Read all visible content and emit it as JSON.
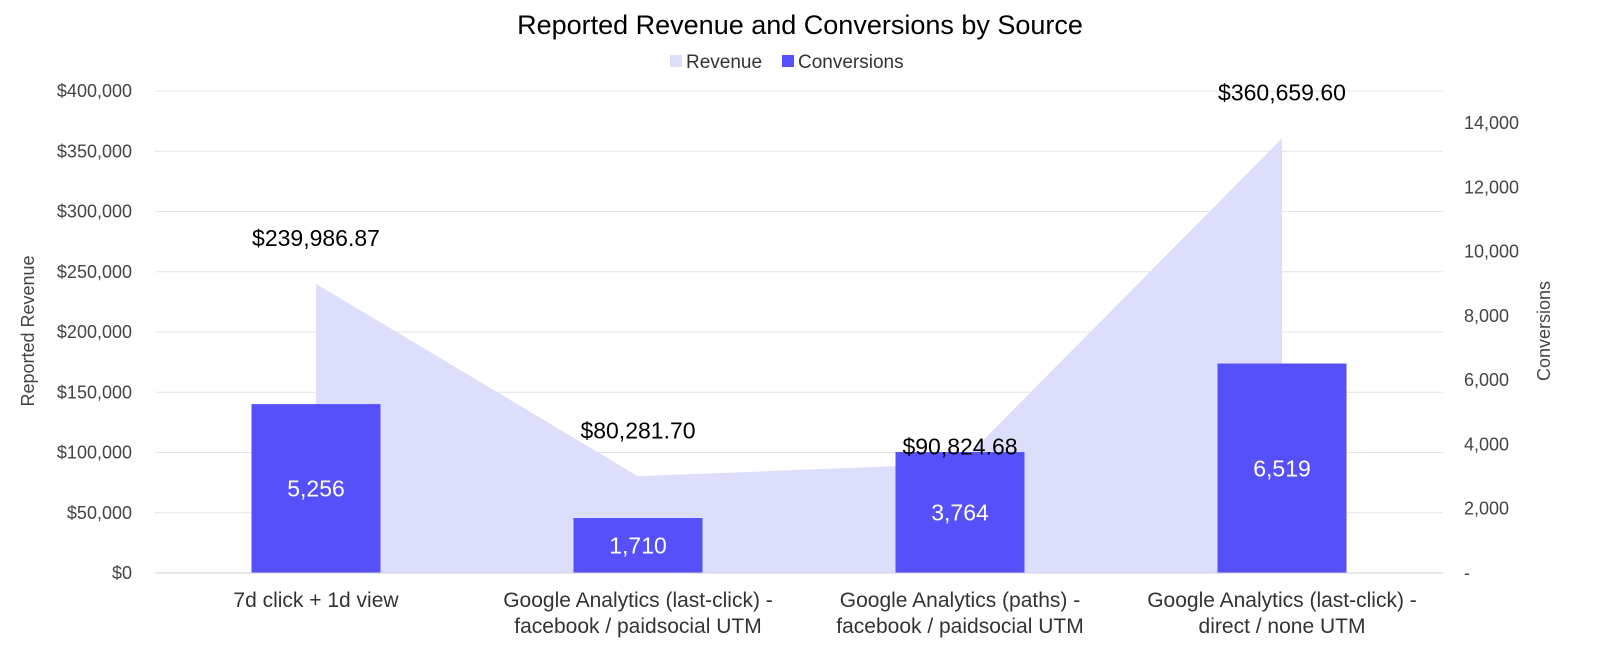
{
  "chart_data": {
    "type": "bar",
    "title": "Reported Revenue and Conversions by Source",
    "categories": [
      [
        "7d click + 1d view"
      ],
      [
        "Google Analytics (last-click) -",
        "facebook / paidsocial UTM"
      ],
      [
        "Google Analytics (paths) -",
        "facebook / paidsocial UTM"
      ],
      [
        "Google Analytics (last-click) -",
        "direct / none UTM"
      ]
    ],
    "series": [
      {
        "name": "Revenue",
        "kind": "area",
        "axis": "left",
        "values": [
          239986.87,
          80281.7,
          90824.68,
          360659.6
        ],
        "labels": [
          "$239,986.87",
          "$80,281.70",
          "$90,824.68",
          "$360,659.60"
        ],
        "color": "#dcdefc"
      },
      {
        "name": "Conversions",
        "kind": "bar",
        "axis": "right",
        "values": [
          5256,
          1710,
          3764,
          6519
        ],
        "labels": [
          "5,256",
          "1,710",
          "3,764",
          "6,519"
        ],
        "color": "#5650fb"
      }
    ],
    "ylabel": "Reported Revenue",
    "y2label": "Conversions",
    "ylim": [
      0,
      400000
    ],
    "y2lim": [
      0,
      15000
    ],
    "yticks": [
      {
        "value": 0,
        "label": "$0"
      },
      {
        "value": 50000,
        "label": "$50,000"
      },
      {
        "value": 100000,
        "label": "$100,000"
      },
      {
        "value": 150000,
        "label": "$150,000"
      },
      {
        "value": 200000,
        "label": "$200,000"
      },
      {
        "value": 250000,
        "label": "$250,000"
      },
      {
        "value": 300000,
        "label": "$300,000"
      },
      {
        "value": 350000,
        "label": "$350,000"
      },
      {
        "value": 400000,
        "label": "$400,000"
      }
    ],
    "y2ticks": [
      {
        "value": 0,
        "label": "-"
      },
      {
        "value": 2000,
        "label": "2,000"
      },
      {
        "value": 4000,
        "label": "4,000"
      },
      {
        "value": 6000,
        "label": "6,000"
      },
      {
        "value": 8000,
        "label": "8,000"
      },
      {
        "value": 10000,
        "label": "10,000"
      },
      {
        "value": 12000,
        "label": "12,000"
      },
      {
        "value": 14000,
        "label": "14,000"
      }
    ],
    "grid": true,
    "legend": "top-center",
    "gridColor": "#e4e4e4"
  }
}
